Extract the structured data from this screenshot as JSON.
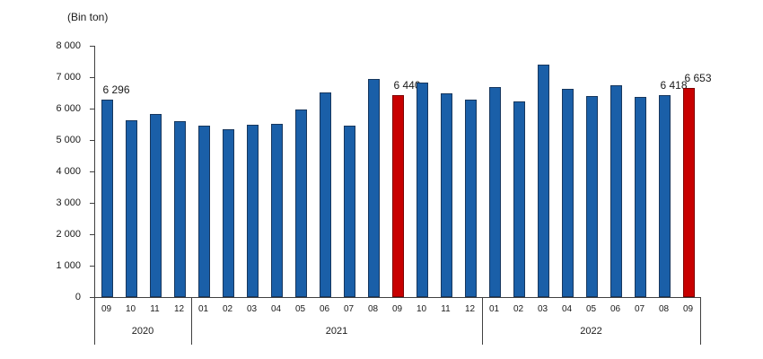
{
  "chart_data": {
    "type": "bar",
    "unit_label": "(Bin ton)",
    "ylim": [
      0,
      8000
    ],
    "y_tick_step": 1000,
    "y_tick_labels": [
      "0",
      "1 000",
      "2 000",
      "3 000",
      "4 000",
      "5 000",
      "6 000",
      "7 000",
      "8 000"
    ],
    "grid": false,
    "legend": "none",
    "colors": {
      "bar_fill": "#1A5FA8",
      "bar_border": "#17375E",
      "highlight_fill": "#C80000",
      "highlight_border": "#7E0000",
      "axis": "#404040",
      "text": "#1A1A1A"
    },
    "groups": [
      {
        "year": "2020",
        "months": [
          "09",
          "10",
          "11",
          "12"
        ],
        "values": [
          6296,
          5620,
          5830,
          5590
        ]
      },
      {
        "year": "2021",
        "months": [
          "01",
          "02",
          "03",
          "04",
          "05",
          "06",
          "07",
          "08",
          "09",
          "10",
          "11",
          "12"
        ],
        "values": [
          5450,
          5350,
          5490,
          5520,
          5960,
          6510,
          5450,
          6950,
          6440,
          6840,
          6490,
          6290
        ]
      },
      {
        "year": "2022",
        "months": [
          "01",
          "02",
          "03",
          "04",
          "05",
          "06",
          "07",
          "08",
          "09"
        ],
        "values": [
          6680,
          6230,
          7400,
          6620,
          6400,
          6730,
          6380,
          6418,
          6653
        ]
      }
    ],
    "highlighted": [
      {
        "year": "2021",
        "month": "09"
      },
      {
        "year": "2022",
        "month": "09"
      }
    ],
    "data_labels": [
      {
        "year": "2020",
        "month": "09",
        "text": "6 296"
      },
      {
        "year": "2021",
        "month": "09",
        "text": "6 440"
      },
      {
        "year": "2022",
        "month": "08",
        "text": "6 418"
      },
      {
        "year": "2022",
        "month": "09",
        "text": "6 653"
      }
    ]
  }
}
